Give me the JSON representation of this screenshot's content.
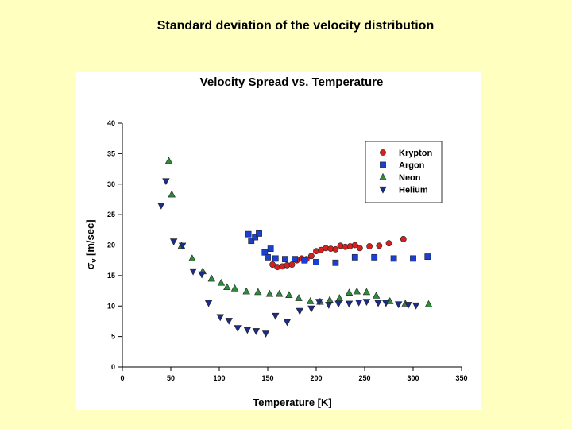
{
  "slide": {
    "title": "Standard deviation of the velocity distribution"
  },
  "chart_data": {
    "type": "scatter",
    "title": "Velocity Spread vs. Temperature",
    "xlabel": "Temperature [K]",
    "ylabel": {
      "main": "σ",
      "sub": "v",
      "rest": " [m/sec]"
    },
    "xlim": [
      0,
      350
    ],
    "ylim": [
      0,
      40
    ],
    "xticks": [
      0,
      50,
      100,
      150,
      200,
      250,
      300,
      350
    ],
    "yticks": [
      0,
      5,
      10,
      15,
      20,
      25,
      30,
      35,
      40
    ],
    "grid": false,
    "legend_position": "top-right",
    "series": [
      {
        "name": "Krypton",
        "marker": "circle",
        "color": "#d62020",
        "points": [
          [
            155,
            16.8
          ],
          [
            160,
            16.4
          ],
          [
            165,
            16.5
          ],
          [
            170,
            16.7
          ],
          [
            175,
            16.8
          ],
          [
            180,
            17.5
          ],
          [
            185,
            17.8
          ],
          [
            190,
            17.7
          ],
          [
            195,
            18.2
          ],
          [
            200,
            19.0
          ],
          [
            205,
            19.2
          ],
          [
            210,
            19.5
          ],
          [
            215,
            19.4
          ],
          [
            220,
            19.3
          ],
          [
            225,
            19.9
          ],
          [
            230,
            19.7
          ],
          [
            235,
            19.8
          ],
          [
            240,
            20.0
          ],
          [
            245,
            19.5
          ],
          [
            255,
            19.8
          ],
          [
            265,
            19.9
          ],
          [
            275,
            20.3
          ],
          [
            290,
            21.0
          ]
        ]
      },
      {
        "name": "Argon",
        "marker": "square",
        "color": "#1a3fd4",
        "points": [
          [
            130,
            21.8
          ],
          [
            133,
            20.7
          ],
          [
            137,
            21.3
          ],
          [
            141,
            21.9
          ],
          [
            147,
            18.8
          ],
          [
            150,
            18.0
          ],
          [
            153,
            19.4
          ],
          [
            158,
            17.8
          ],
          [
            168,
            17.7
          ],
          [
            178,
            17.7
          ],
          [
            188,
            17.5
          ],
          [
            200,
            17.2
          ],
          [
            220,
            17.1
          ],
          [
            240,
            18.0
          ],
          [
            260,
            18.0
          ],
          [
            280,
            17.8
          ],
          [
            300,
            17.8
          ],
          [
            315,
            18.1
          ]
        ]
      },
      {
        "name": "Neon",
        "marker": "triangle-up",
        "color": "#2e8b3a",
        "points": [
          [
            48,
            33.8
          ],
          [
            51,
            28.3
          ],
          [
            61,
            19.9
          ],
          [
            72,
            17.8
          ],
          [
            83,
            15.7
          ],
          [
            92,
            14.5
          ],
          [
            102,
            13.8
          ],
          [
            108,
            13.1
          ],
          [
            116,
            12.9
          ],
          [
            128,
            12.4
          ],
          [
            140,
            12.3
          ],
          [
            152,
            12.0
          ],
          [
            162,
            12.0
          ],
          [
            172,
            11.8
          ],
          [
            182,
            11.3
          ],
          [
            194,
            10.8
          ],
          [
            204,
            10.7
          ],
          [
            214,
            11.0
          ],
          [
            224,
            11.3
          ],
          [
            234,
            12.2
          ],
          [
            242,
            12.4
          ],
          [
            252,
            12.3
          ],
          [
            262,
            11.7
          ],
          [
            276,
            10.8
          ],
          [
            292,
            10.4
          ],
          [
            316,
            10.3
          ]
        ]
      },
      {
        "name": "Helium",
        "marker": "triangle-down",
        "color": "#1a2c8c",
        "points": [
          [
            40,
            26.5
          ],
          [
            45,
            30.5
          ],
          [
            53,
            20.6
          ],
          [
            62,
            19.9
          ],
          [
            73,
            15.7
          ],
          [
            82,
            15.2
          ],
          [
            89,
            10.5
          ],
          [
            101,
            8.2
          ],
          [
            110,
            7.6
          ],
          [
            119,
            6.4
          ],
          [
            129,
            6.1
          ],
          [
            138,
            5.9
          ],
          [
            148,
            5.5
          ],
          [
            158,
            8.4
          ],
          [
            170,
            7.4
          ],
          [
            183,
            9.2
          ],
          [
            195,
            9.6
          ],
          [
            203,
            10.7
          ],
          [
            213,
            10.2
          ],
          [
            223,
            10.4
          ],
          [
            234,
            10.4
          ],
          [
            244,
            10.6
          ],
          [
            252,
            10.7
          ],
          [
            264,
            10.5
          ],
          [
            272,
            10.5
          ],
          [
            285,
            10.3
          ],
          [
            295,
            10.2
          ],
          [
            303,
            10.1
          ]
        ]
      }
    ]
  }
}
